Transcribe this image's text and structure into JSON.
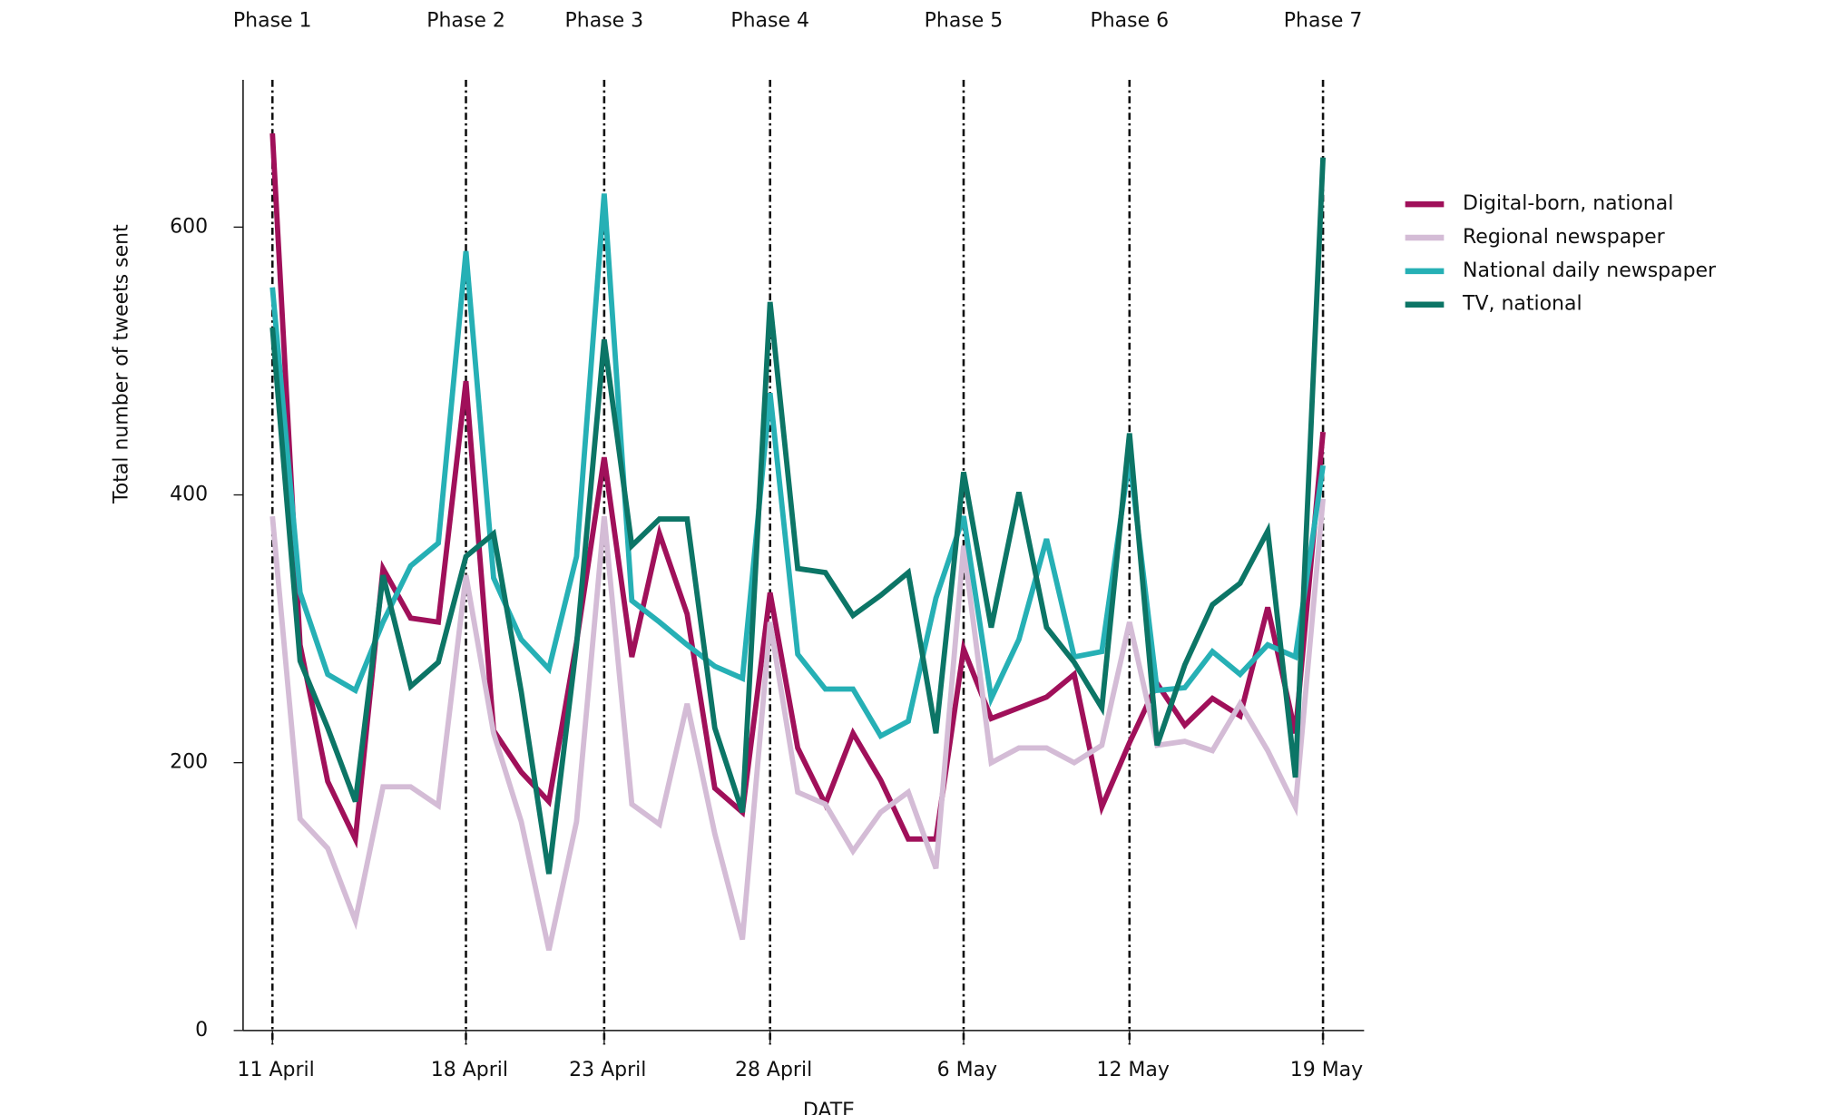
{
  "chart_data": {
    "type": "line",
    "y_label": "Total number of tweets sent",
    "x_label": "DATE",
    "categories": [
      "11 April",
      null,
      null,
      null,
      null,
      null,
      null,
      "18 April",
      null,
      null,
      null,
      null,
      "23 April",
      null,
      null,
      null,
      null,
      null,
      "28 April",
      null,
      null,
      null,
      null,
      null,
      null,
      "6 May",
      null,
      null,
      null,
      null,
      null,
      "12 May",
      null,
      null,
      null,
      null,
      null,
      null,
      "19 May"
    ],
    "ylim": [
      0,
      710
    ],
    "yticks": [
      0,
      200,
      400,
      600
    ],
    "annotations": [
      {
        "text": "Phase 1",
        "x": "11 April"
      },
      {
        "text": "Phase 2",
        "x": "18 April"
      },
      {
        "text": "Phase 3",
        "x": "23 April"
      },
      {
        "text": "Phase 4",
        "x": "28 April"
      },
      {
        "text": "Phase 5",
        "x": "6 May"
      },
      {
        "text": "Phase 6",
        "x": "12 May"
      },
      {
        "text": "Phase 7",
        "x": "19 May"
      }
    ],
    "series": [
      {
        "name": "Digital-born, national",
        "color": "#a0105a",
        "values": [
          670,
          288,
          186,
          143,
          345,
          308,
          305,
          485,
          224,
          193,
          171,
          290,
          428,
          279,
          371,
          311,
          181,
          163,
          327,
          211,
          169,
          222,
          187,
          143,
          143,
          285,
          233,
          241,
          249,
          266,
          167,
          215,
          259,
          228,
          248,
          235,
          316,
          222,
          447
        ]
      },
      {
        "name": "Regional newspaper",
        "color": "#d4bcd6",
        "values": [
          384,
          158,
          136,
          82,
          182,
          182,
          168,
          340,
          222,
          156,
          60,
          156,
          384,
          169,
          154,
          244,
          147,
          68,
          305,
          178,
          169,
          134,
          163,
          178,
          121,
          362,
          200,
          211,
          211,
          200,
          213,
          305,
          213,
          216,
          209,
          244,
          209,
          167,
          397
        ]
      },
      {
        "name": "National daily newspaper",
        "color": "#26b0b5",
        "values": [
          555,
          327,
          266,
          254,
          305,
          347,
          364,
          582,
          338,
          292,
          270,
          354,
          625,
          321,
          305,
          288,
          272,
          263,
          476,
          281,
          255,
          255,
          220,
          231,
          323,
          384,
          248,
          292,
          367,
          279,
          283,
          428,
          254,
          256,
          283,
          266,
          288,
          279,
          422
        ]
      },
      {
        "name": "TV, national",
        "color": "#0c7566",
        "values": [
          525,
          276,
          226,
          171,
          340,
          257,
          275,
          354,
          371,
          253,
          117,
          288,
          516,
          362,
          382,
          382,
          226,
          163,
          544,
          345,
          342,
          310,
          325,
          342,
          222,
          417,
          301,
          402,
          301,
          275,
          241,
          446,
          213,
          273,
          318,
          334,
          373,
          189,
          652
        ]
      }
    ]
  }
}
